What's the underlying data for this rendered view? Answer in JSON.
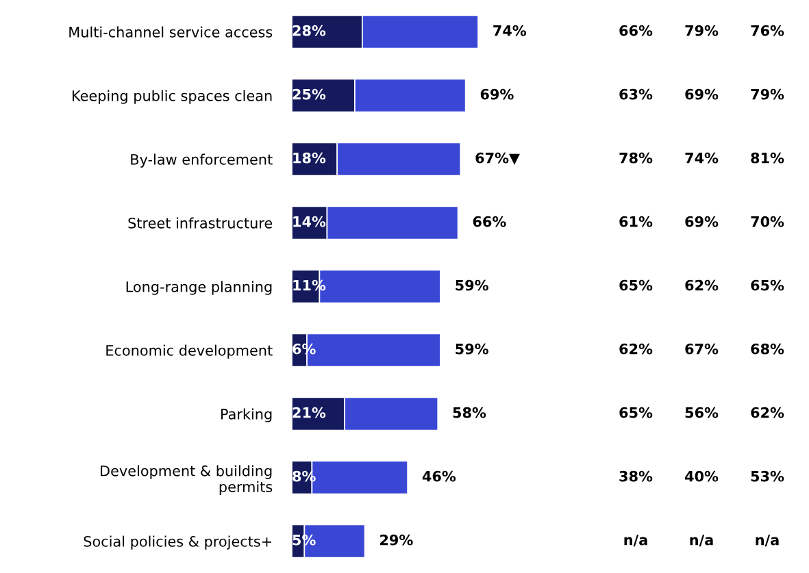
{
  "chart_data": {
    "type": "bar",
    "orientation": "horizontal",
    "stacked": true,
    "categories": [
      "Multi-channel service access",
      "Keeping public spaces clean",
      "By-law enforcement",
      "Street infrastructure",
      "Long-range planning",
      "Economic development",
      "Parking",
      "Development & building\npermits",
      "Social policies & projects+"
    ],
    "tick_labels": "y",
    "grid": false,
    "series": [
      {
        "color": "#141a5c",
        "values": [
          28,
          25,
          18,
          14,
          11,
          6,
          21,
          8,
          5
        ],
        "value_labels": [
          "28%",
          "25%",
          "18%",
          "14%",
          "11%",
          "6%",
          "21%",
          "8%",
          "5%"
        ]
      },
      {
        "color": "#3a47d5",
        "values": [
          46,
          44,
          49,
          52,
          48,
          53,
          37,
          38,
          24
        ]
      }
    ],
    "totals": [
      "74%",
      "69%",
      "67%▼",
      "66%",
      "59%",
      "59%",
      "58%",
      "46%",
      "29%"
    ],
    "annotations": [
      "66%",
      "79%",
      "76%",
      "63%",
      "69%",
      "79%",
      "78%",
      "74%",
      "81%",
      "61%",
      "69%",
      "70%",
      "65%",
      "62%",
      "65%",
      "62%",
      "67%",
      "68%",
      "65%",
      "56%",
      "62%",
      "38%",
      "40%",
      "53%",
      "n/a",
      "n/a",
      "n/a"
    ]
  }
}
